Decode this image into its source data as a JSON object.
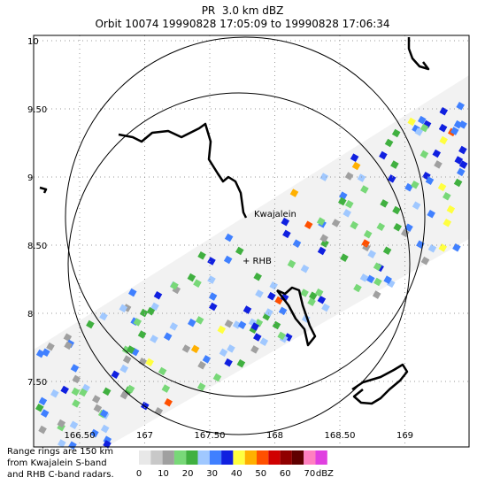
{
  "header": {
    "title": "PR  3.0 km dBZ",
    "subtitle": "Orbit 10074 19990828 17:05:09 to 19990828 17:06:34"
  },
  "axes": {
    "lat_ticks": [
      10,
      {
        "value": 9.5,
        "label": "9.50"
      },
      9,
      {
        "value": 8.5,
        "label": "8.50"
      },
      8,
      {
        "value": 7.5,
        "label": "7.50"
      }
    ],
    "lon_ticks": [
      {
        "value": 166.5,
        "label": "166.50"
      },
      167,
      {
        "value": 167.5,
        "label": "167.50"
      },
      168,
      {
        "value": 168.5,
        "label": "168.50"
      },
      169
    ]
  },
  "places": {
    "kwajalein": "Kwajalein",
    "rhb": "+ RHB"
  },
  "note": [
    "Range rings are 150 km",
    "from Kwajalein S-band",
    "and RHB C-band radars."
  ],
  "colorbar": {
    "ticks": [
      0,
      10,
      20,
      30,
      40,
      50,
      60,
      70
    ],
    "unit": "dBZ",
    "colors": [
      "#e8e8e8",
      "#c8c8c8",
      "#a0a0a0",
      "#78d878",
      "#40b040",
      "#a0c8ff",
      "#4080ff",
      "#1020e0",
      "#ffff40",
      "#ffb000",
      "#ff5000",
      "#d00000",
      "#900000",
      "#600000",
      "#ff80c0",
      "#e040e0"
    ]
  }
}
